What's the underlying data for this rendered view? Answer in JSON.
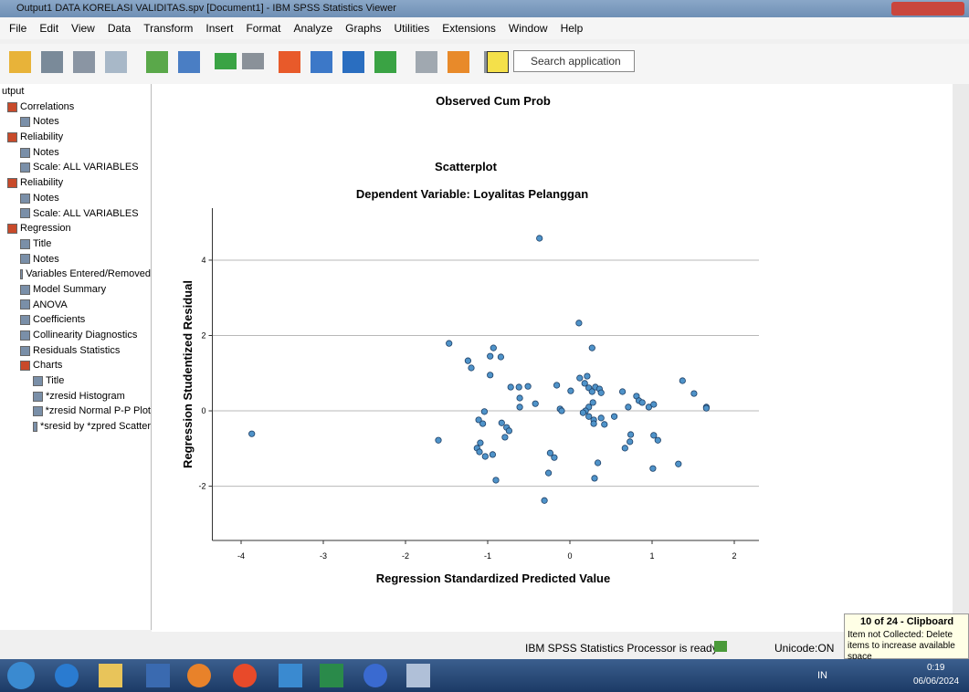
{
  "window": {
    "title": "Output1 DATA KORELASI VALIDITAS.spv [Document1] - IBM SPSS Statistics Viewer"
  },
  "menu": [
    "File",
    "Edit",
    "View",
    "Data",
    "Transform",
    "Insert",
    "Format",
    "Analyze",
    "Graphs",
    "Utilities",
    "Extensions",
    "Window",
    "Help"
  ],
  "search": "Search application",
  "tree": {
    "root": "utput",
    "items": [
      {
        "label": "Correlations",
        "children": [
          {
            "label": "Notes"
          }
        ]
      },
      {
        "label": "Reliability",
        "children": [
          {
            "label": "Notes"
          },
          {
            "label": "Scale: ALL VARIABLES"
          }
        ]
      },
      {
        "label": "Reliability",
        "children": [
          {
            "label": "Notes"
          },
          {
            "label": "Scale: ALL VARIABLES"
          }
        ]
      },
      {
        "label": "Regression",
        "children": [
          {
            "label": "Title"
          },
          {
            "label": "Notes"
          },
          {
            "label": "Variables Entered/Removed"
          },
          {
            "label": "Model Summary"
          },
          {
            "label": "ANOVA"
          },
          {
            "label": "Coefficients"
          },
          {
            "label": "Collinearity Diagnostics"
          },
          {
            "label": "Residuals Statistics"
          },
          {
            "label": "Charts",
            "children": [
              {
                "label": "Title"
              },
              {
                "label": "*zresid Histogram"
              },
              {
                "label": "*zresid Normal P-P Plot"
              },
              {
                "label": "*sresid by *zpred Scatter"
              }
            ]
          }
        ]
      }
    ]
  },
  "output_heading": "Observed Cum Prob",
  "chart_data": {
    "type": "scatter",
    "title": "Scatterplot",
    "subtitle": "Dependent Variable: Loyalitas Pelanggan",
    "x_label": "Regression Standardized Predicted Value",
    "y_label": "Regression Studentized Residual",
    "xlim": [
      -4.35,
      2.3
    ],
    "ylim": [
      -3.44,
      5.38
    ],
    "xticks": [
      -4,
      -3,
      -2,
      -1,
      0,
      1,
      2
    ],
    "yticks": [
      -2,
      0,
      2,
      4
    ],
    "grid": true,
    "color": "#4f93c9",
    "x": [
      -3.87,
      -0.37,
      -1.6,
      -1.47,
      -1.24,
      -1.2,
      -0.93,
      -0.97,
      -0.84,
      -0.97,
      -1.04,
      -1.11,
      -1.06,
      -1.13,
      -1.09,
      -1.1,
      -1.03,
      -0.94,
      -0.9,
      -0.83,
      -0.77,
      -0.74,
      -0.79,
      -0.72,
      -0.62,
      -0.51,
      -0.61,
      -0.61,
      -0.42,
      -0.31,
      -0.24,
      -0.19,
      -0.26,
      -0.16,
      -0.12,
      -0.1,
      0.01,
      0.11,
      0.12,
      0.21,
      0.18,
      0.23,
      0.27,
      0.31,
      0.36,
      0.38,
      0.27,
      0.28,
      0.23,
      0.19,
      0.16,
      0.23,
      0.29,
      0.38,
      0.42,
      0.29,
      0.34,
      0.3,
      0.54,
      0.64,
      0.71,
      0.81,
      0.84,
      0.88,
      0.96,
      1.02,
      0.74,
      0.73,
      0.67,
      1.02,
      1.07,
      1.01,
      1.37,
      1.51,
      1.66,
      1.66,
      1.32
    ],
    "values": [
      -0.61,
      4.58,
      -0.78,
      1.79,
      1.33,
      1.14,
      1.67,
      1.45,
      1.43,
      0.95,
      -0.02,
      -0.24,
      -0.34,
      -0.99,
      -0.85,
      -1.09,
      -1.21,
      -1.16,
      -1.84,
      -0.32,
      -0.44,
      -0.53,
      -0.7,
      0.63,
      0.63,
      0.65,
      0.34,
      0.1,
      0.19,
      -2.38,
      -1.12,
      -1.24,
      -1.65,
      0.68,
      0.05,
      0,
      0.53,
      2.33,
      0.87,
      0.92,
      0.73,
      0.61,
      0.51,
      0.63,
      0.58,
      0.48,
      1.67,
      0.22,
      0.1,
      0,
      -0.05,
      -0.15,
      -0.24,
      -0.19,
      -0.36,
      -0.34,
      -1.38,
      -1.79,
      -0.15,
      0.51,
      0.1,
      0.39,
      0.27,
      0.22,
      0.1,
      0.17,
      -0.63,
      -0.82,
      -0.99,
      -0.65,
      -0.78,
      -1.53,
      0.8,
      0.46,
      0.1,
      0.07,
      -1.41
    ]
  },
  "status": {
    "message": "IBM SPSS Statistics Processor is ready",
    "unicode": "Unicode:ON"
  },
  "clipboard": {
    "title": "10 of 24 - Clipboard",
    "message": "Item not Collected: Delete items to increase available space"
  },
  "taskbar": {
    "language": "IN",
    "time": "0:19",
    "date": "06/06/2024"
  }
}
